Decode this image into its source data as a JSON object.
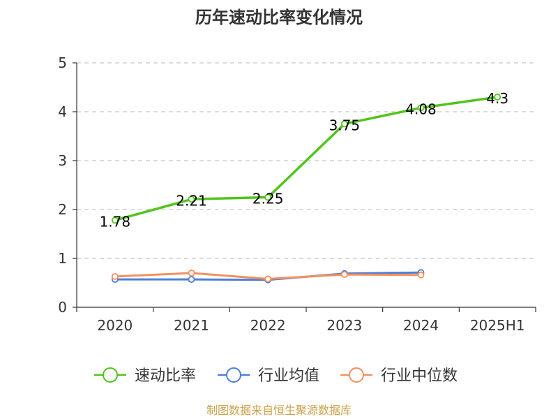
{
  "chart_data": {
    "type": "line",
    "title": "历年速动比率变化情况",
    "categories": [
      "2020",
      "2021",
      "2022",
      "2023",
      "2024",
      "2025H1"
    ],
    "ylim": [
      0,
      5
    ],
    "yticks": [
      "0",
      "1",
      "2",
      "3",
      "4",
      "5"
    ],
    "grid": true,
    "legend_position": "bottom",
    "series": [
      {
        "name": "速动比率",
        "color": "#52c41a",
        "values": [
          1.78,
          2.21,
          2.25,
          3.75,
          4.08,
          4.3
        ],
        "labels": [
          "1.78",
          "2.21",
          "2.25",
          "3.75",
          "4.08",
          "4.3"
        ]
      },
      {
        "name": "行业均值",
        "color": "#4e7fd6",
        "values": [
          0.57,
          0.57,
          0.56,
          0.69,
          0.71,
          null
        ]
      },
      {
        "name": "行业中位数",
        "color": "#f3915f",
        "values": [
          0.63,
          0.7,
          0.58,
          0.67,
          0.66,
          null
        ]
      }
    ],
    "source": "制图数据来自恒生聚源数据库"
  }
}
